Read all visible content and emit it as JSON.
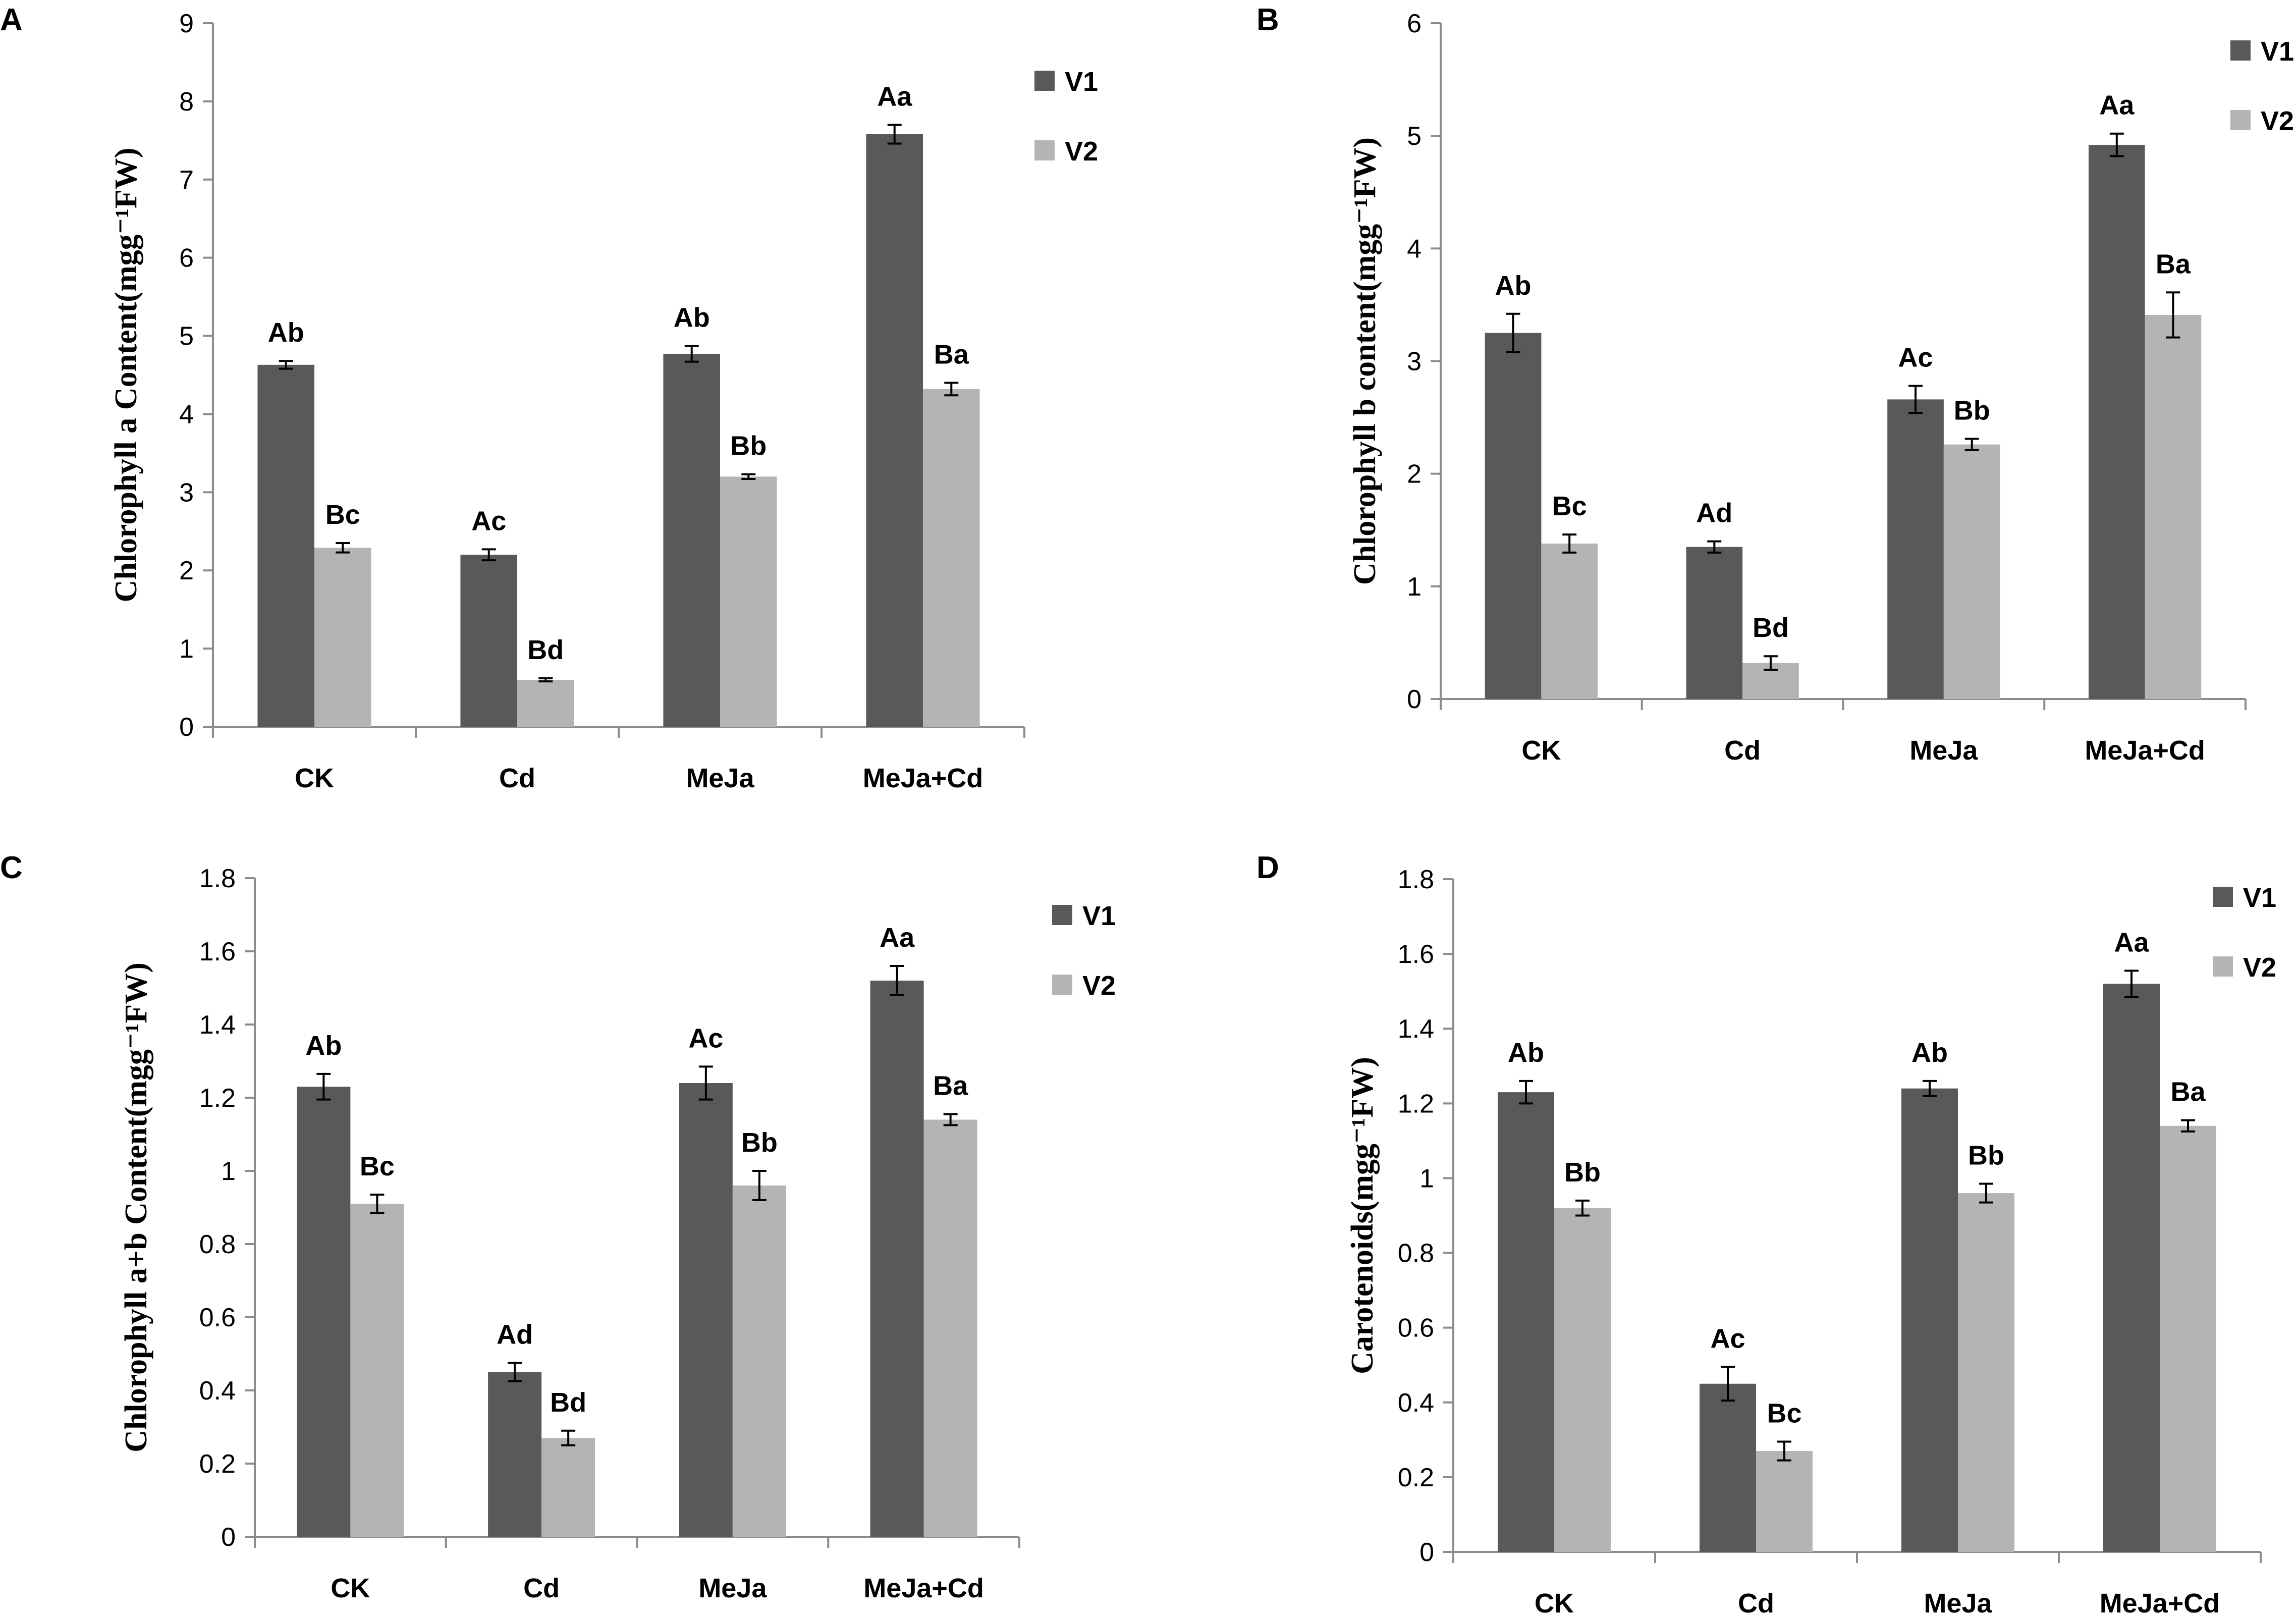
{
  "colors": {
    "V1": "#595959",
    "V2": "#b4b4b4",
    "axis": "#8c8c8c"
  },
  "chart_data": [
    {
      "panel": "A",
      "type": "bar",
      "ylabel": "Chlorophyll a Content(mgg⁻¹FW)",
      "ylim": [
        0,
        9
      ],
      "yticks": [
        "0",
        "1",
        "2",
        "3",
        "4",
        "5",
        "6",
        "7",
        "8",
        "9"
      ],
      "categories": [
        "CK",
        "Cd",
        "MeJa",
        "MeJa+Cd"
      ],
      "legend": [
        "V1",
        "V2"
      ],
      "legend_position": "top-right",
      "series": [
        {
          "name": "V1",
          "values": [
            4.63,
            2.2,
            4.77,
            7.58
          ],
          "errors": [
            0.05,
            0.07,
            0.1,
            0.12
          ],
          "labels": [
            "Ab",
            "Ac",
            "Ab",
            "Aa"
          ]
        },
        {
          "name": "V2",
          "values": [
            2.29,
            0.6,
            3.2,
            4.32
          ],
          "errors": [
            0.06,
            0.02,
            0.03,
            0.08
          ],
          "labels": [
            "Bc",
            "Bd",
            "Bb",
            "Ba"
          ]
        }
      ]
    },
    {
      "panel": "B",
      "type": "bar",
      "ylabel": "Chlorophyll b content(mgg⁻¹FW)",
      "ylim": [
        0,
        6
      ],
      "yticks": [
        "0",
        "1",
        "2",
        "3",
        "4",
        "5",
        "6"
      ],
      "categories": [
        "CK",
        "Cd",
        "MeJa",
        "MeJa+Cd"
      ],
      "legend": [
        "V1",
        "V2"
      ],
      "legend_position": "top-right",
      "series": [
        {
          "name": "V1",
          "values": [
            3.25,
            1.35,
            2.66,
            4.92
          ],
          "errors": [
            0.17,
            0.05,
            0.12,
            0.1
          ],
          "labels": [
            "Ab",
            "Ad",
            "Ac",
            "Aa"
          ]
        },
        {
          "name": "V2",
          "values": [
            1.38,
            0.32,
            2.26,
            3.41
          ],
          "errors": [
            0.08,
            0.06,
            0.05,
            0.2
          ],
          "labels": [
            "Bc",
            "Bd",
            "Bb",
            "Ba"
          ]
        }
      ]
    },
    {
      "panel": "C",
      "type": "bar",
      "ylabel": "Chlorophyll a+b Content(mgg⁻¹FW)",
      "ylim": [
        0,
        1.8
      ],
      "yticks": [
        "0",
        "0.2",
        "0.4",
        "0.6",
        "0.8",
        "1",
        "1.2",
        "1.4",
        "1.6",
        "1.8"
      ],
      "categories": [
        "CK",
        "Cd",
        "MeJa",
        "MeJa+Cd"
      ],
      "legend": [
        "V1",
        "V2"
      ],
      "legend_position": "top-right",
      "series": [
        {
          "name": "V1",
          "values": [
            1.23,
            0.45,
            1.24,
            1.52
          ],
          "errors": [
            0.035,
            0.025,
            0.045,
            0.04
          ],
          "labels": [
            "Ab",
            "Ad",
            "Ac",
            "Aa"
          ]
        },
        {
          "name": "V2",
          "values": [
            0.91,
            0.27,
            0.96,
            1.14
          ],
          "errors": [
            0.025,
            0.02,
            0.04,
            0.015
          ],
          "labels": [
            "Bc",
            "Bd",
            "Bb",
            "Ba"
          ]
        }
      ]
    },
    {
      "panel": "D",
      "type": "bar",
      "ylabel": "Carotenoids(mgg⁻¹FW)",
      "ylim": [
        0,
        1.8
      ],
      "yticks": [
        "0",
        "0.2",
        "0.4",
        "0.6",
        "0.8",
        "1",
        "1.2",
        "1.4",
        "1.6",
        "1.8"
      ],
      "categories": [
        "CK",
        "Cd",
        "MeJa",
        "MeJa+Cd"
      ],
      "legend": [
        "V1",
        "V2"
      ],
      "legend_position": "top-right",
      "series": [
        {
          "name": "V1",
          "values": [
            1.23,
            0.45,
            1.24,
            1.52
          ],
          "errors": [
            0.03,
            0.045,
            0.02,
            0.035
          ],
          "labels": [
            "Ab",
            "Ac",
            "Ab",
            "Aa"
          ]
        },
        {
          "name": "V2",
          "values": [
            0.92,
            0.27,
            0.96,
            1.14
          ],
          "errors": [
            0.02,
            0.025,
            0.025,
            0.015
          ],
          "labels": [
            "Bb",
            "Bc",
            "Bb",
            "Ba"
          ]
        }
      ]
    }
  ]
}
